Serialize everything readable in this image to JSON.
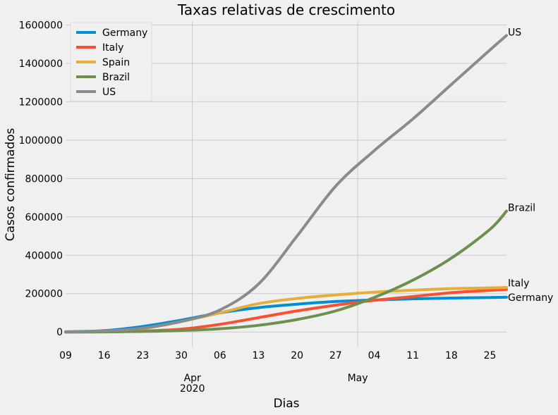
{
  "chart_data": {
    "type": "line",
    "title": "Taxas relativas de crescimento",
    "xlabel": "Dias",
    "ylabel": "Casos confirmados",
    "ylim": [
      -80000,
      1620000
    ],
    "grid": true,
    "legend_position": "top-left",
    "x_ticks": [
      {
        "date": "2020-03-09",
        "label": "09"
      },
      {
        "date": "2020-03-16",
        "label": "16"
      },
      {
        "date": "2020-03-23",
        "label": "23"
      },
      {
        "date": "2020-03-30",
        "label": "30"
      },
      {
        "date": "2020-04-06",
        "label": "06"
      },
      {
        "date": "2020-04-13",
        "label": "13"
      },
      {
        "date": "2020-04-20",
        "label": "20"
      },
      {
        "date": "2020-04-27",
        "label": "27"
      },
      {
        "date": "2020-05-04",
        "label": "04"
      },
      {
        "date": "2020-05-11",
        "label": "11"
      },
      {
        "date": "2020-05-18",
        "label": "18"
      },
      {
        "date": "2020-05-25",
        "label": "25"
      }
    ],
    "x_major_ticks": [
      {
        "date": "2020-04-01",
        "label": "Apr",
        "sublabel": "2020"
      },
      {
        "date": "2020-05-01",
        "label": "May",
        "sublabel": ""
      }
    ],
    "y_ticks": [
      0,
      200000,
      400000,
      600000,
      800000,
      1000000,
      1200000,
      1400000,
      1600000
    ],
    "x": [
      "2020-03-09",
      "2020-03-16",
      "2020-03-23",
      "2020-03-30",
      "2020-04-06",
      "2020-04-13",
      "2020-04-20",
      "2020-04-27",
      "2020-05-04",
      "2020-05-11",
      "2020-05-18",
      "2020-05-25",
      "2020-05-28"
    ],
    "series": [
      {
        "name": "Germany",
        "color": "#008fd5",
        "values": [
          1200,
          7000,
          29000,
          62000,
          100000,
          127000,
          145000,
          159000,
          167000,
          173000,
          177000,
          180000,
          181000
        ]
      },
      {
        "name": "Italy",
        "color": "#fc4f30",
        "values": [
          0,
          1000,
          5000,
          15000,
          40000,
          75000,
          110000,
          140000,
          165000,
          185000,
          205000,
          217000,
          222000
        ]
      },
      {
        "name": "Spain",
        "color": "#e5ae38",
        "values": [
          500,
          5000,
          18000,
          55000,
          100000,
          148000,
          175000,
          193000,
          208000,
          218000,
          226000,
          230000,
          232000
        ]
      },
      {
        "name": "Brazil",
        "color": "#6d904f",
        "values": [
          0,
          500,
          3000,
          8000,
          17000,
          35000,
          65000,
          110000,
          180000,
          270000,
          385000,
          535000,
          630000
        ]
      },
      {
        "name": "US",
        "color": "#8b8b8b",
        "values": [
          1000,
          5000,
          20000,
          55000,
          115000,
          250000,
          500000,
          760000,
          945000,
          1110000,
          1290000,
          1470000,
          1545000
        ]
      }
    ],
    "end_labels": [
      "US",
      "Brazil",
      "Italy",
      "Germany"
    ]
  }
}
